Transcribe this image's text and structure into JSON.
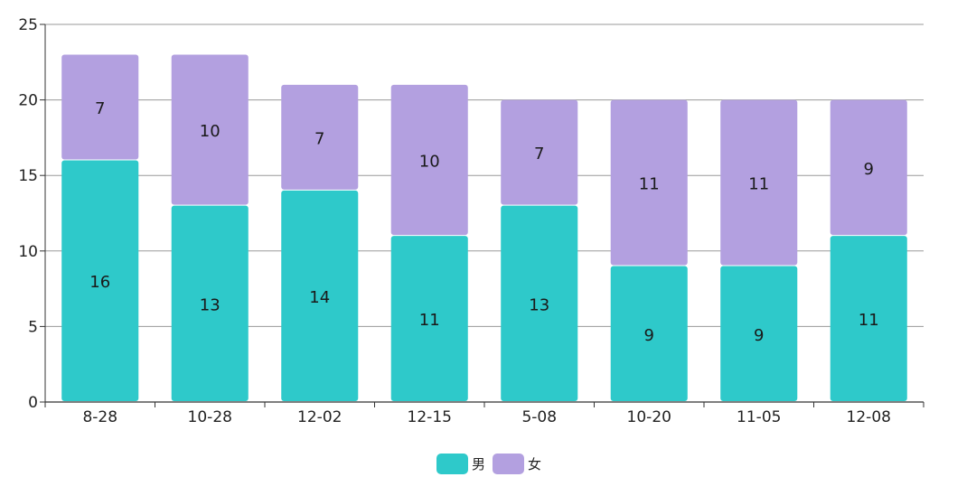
{
  "chart_data": {
    "type": "bar",
    "stacked": true,
    "categories": [
      "8-28",
      "10-28",
      "12-02",
      "12-15",
      "5-08",
      "10-20",
      "11-05",
      "12-08"
    ],
    "series": [
      {
        "name": "男",
        "color": "#2ec9ca",
        "values": [
          16,
          13,
          14,
          11,
          13,
          9,
          9,
          11
        ]
      },
      {
        "name": "女",
        "color": "#b3a0e0",
        "values": [
          7,
          10,
          7,
          10,
          7,
          11,
          11,
          9
        ]
      }
    ],
    "ylim": [
      0,
      25
    ],
    "yticks": [
      "0",
      "5",
      "10",
      "15",
      "20",
      "25"
    ],
    "grid": true,
    "legend_position": "bottom-center",
    "title": "",
    "xlabel": "",
    "ylabel": ""
  }
}
